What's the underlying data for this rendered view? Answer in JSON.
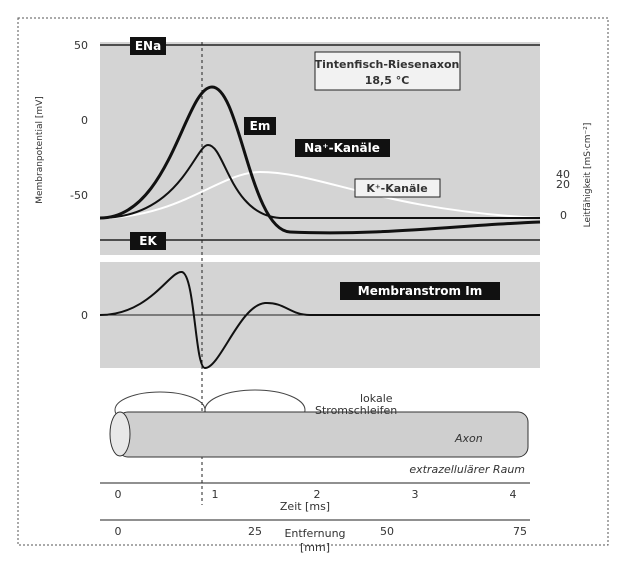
{
  "panel_potential": {
    "ticks": [
      "50",
      "0",
      "-50"
    ],
    "axis_title": "Membranpotential [mV]",
    "right_ticks": [
      "40",
      "20",
      "0"
    ],
    "right_axis_title": "Leitfähigkeit [mS·cm⁻²]",
    "e_na": "ENa",
    "e_k": "EK",
    "e_m": "Em",
    "species": "Tintenfisch-Riesenaxon",
    "temperature": "18,5 °C",
    "na_label": "Na⁺-Kanäle",
    "k_label": "K⁺-Kanäle"
  },
  "panel_current": {
    "tick": "0",
    "label": "Membranstrom Im"
  },
  "panel_axon": {
    "loops_1": "lokale",
    "loops_2": "Stromschleifen",
    "axon": "Axon",
    "space": "extrazellulärer Raum"
  },
  "time_axis": {
    "ticks": [
      "0",
      "1",
      "2",
      "3",
      "4"
    ],
    "title": "Zeit [ms]"
  },
  "distance_axis": {
    "ticks": [
      "0",
      "25",
      "50",
      "75"
    ],
    "title_1": "Entfernung",
    "title_2": "[mm]"
  }
}
